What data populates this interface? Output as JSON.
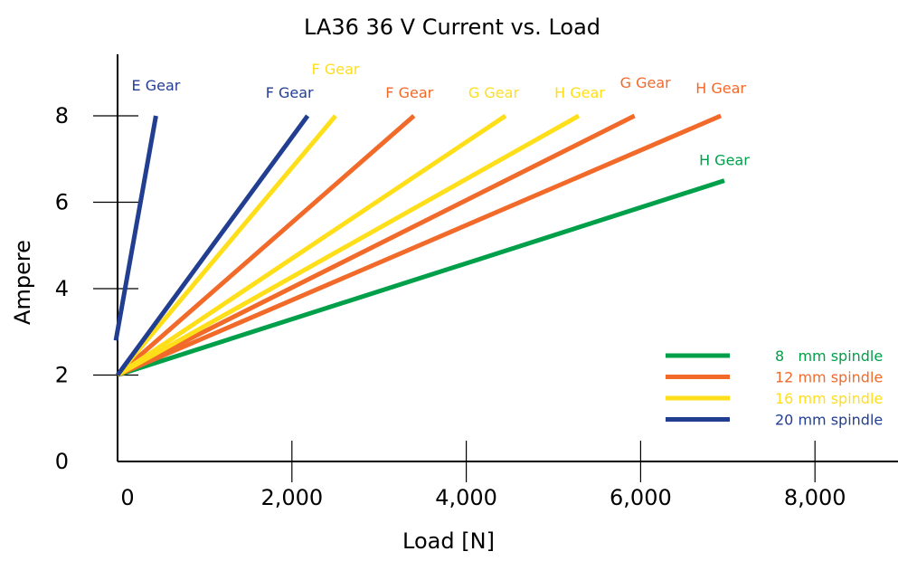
{
  "chart_data": {
    "type": "line",
    "title": "LA36 36 V Current vs. Load",
    "xlabel": "Load [N]",
    "ylabel": "Ampere",
    "xlim": [
      0,
      9000
    ],
    "ylim": [
      0,
      9
    ],
    "x_ticks": [
      0,
      2000,
      4000,
      6000,
      8000
    ],
    "x_tick_labels": [
      "0",
      "2,000",
      "4,000",
      "6,000",
      "8,000"
    ],
    "y_ticks": [
      0,
      2,
      4,
      6,
      8
    ],
    "y_tick_labels": [
      "0",
      "2",
      "4",
      "6",
      "8"
    ],
    "grid": false,
    "legend_position": "bottom-right",
    "colors": {
      "green": "#00a04a",
      "orange": "#f26a2a",
      "yellow": "#ffde1a",
      "blue": "#223e91",
      "axis": "#000000"
    },
    "legend": [
      {
        "label": "8   mm spindle",
        "color": "#00a04a"
      },
      {
        "label": "12 mm spindle",
        "color": "#f26a2a"
      },
      {
        "label": "16 mm spindle",
        "color": "#ffde1a"
      },
      {
        "label": "20 mm spindle",
        "color": "#223e91"
      }
    ],
    "series": [
      {
        "label": "H Gear",
        "spindle_mm": 8,
        "color": "#00a04a",
        "x": [
          0,
          6960
        ],
        "y": [
          2.0,
          6.5
        ]
      },
      {
        "label": "H Gear",
        "spindle_mm": 12,
        "color": "#f26a2a",
        "x": [
          0,
          6920
        ],
        "y": [
          2.0,
          8.0
        ]
      },
      {
        "label": "G Gear",
        "spindle_mm": 12,
        "color": "#f26a2a",
        "x": [
          0,
          5930
        ],
        "y": [
          2.0,
          8.0
        ]
      },
      {
        "label": "F Gear",
        "spindle_mm": 12,
        "color": "#f26a2a",
        "x": [
          0,
          3400
        ],
        "y": [
          2.0,
          8.0
        ]
      },
      {
        "label": "H Gear",
        "spindle_mm": 16,
        "color": "#ffde1a",
        "x": [
          0,
          5290
        ],
        "y": [
          2.0,
          8.0
        ]
      },
      {
        "label": "G Gear",
        "spindle_mm": 16,
        "color": "#ffde1a",
        "x": [
          0,
          4450
        ],
        "y": [
          2.0,
          8.0
        ]
      },
      {
        "label": "F Gear",
        "spindle_mm": 16,
        "color": "#ffde1a",
        "x": [
          0,
          2500
        ],
        "y": [
          2.0,
          8.0
        ]
      },
      {
        "label": "F Gear",
        "spindle_mm": 20,
        "color": "#223e91",
        "x": [
          0,
          2180
        ],
        "y": [
          2.0,
          8.0
        ]
      },
      {
        "label": "E Gear",
        "spindle_mm": 20,
        "color": "#223e91",
        "x": [
          -20,
          440
        ],
        "y": [
          2.8,
          8.0
        ]
      }
    ]
  }
}
